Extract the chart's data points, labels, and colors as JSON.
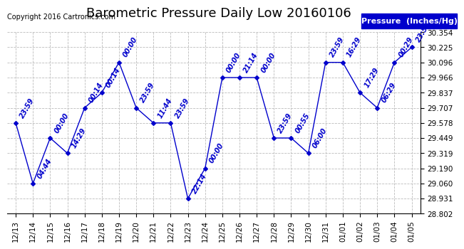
{
  "title": "Barometric Pressure Daily Low 20160106",
  "copyright": "Copyright 2016 Cartronics.com",
  "legend_label": "Pressure  (Inches/Hg)",
  "x_labels": [
    "12/13",
    "12/14",
    "12/15",
    "12/16",
    "12/17",
    "12/18",
    "12/19",
    "12/20",
    "12/21",
    "12/22",
    "12/23",
    "12/24",
    "12/25",
    "12/26",
    "12/27",
    "12/28",
    "12/29",
    "12/30",
    "12/31",
    "01/01",
    "01/02",
    "01/03",
    "01/04",
    "01/05"
  ],
  "y_values": [
    29.578,
    29.06,
    29.449,
    29.319,
    29.707,
    29.837,
    30.096,
    29.707,
    29.578,
    29.578,
    28.931,
    29.19,
    29.966,
    29.966,
    29.966,
    29.449,
    29.449,
    29.319,
    30.096,
    30.096,
    29.837,
    29.707,
    30.096,
    30.225
  ],
  "point_labels": [
    "23:59",
    "04:44",
    "00:00",
    "14:29",
    "00:14",
    "00:14",
    "00:00",
    "23:59",
    "11:44",
    "23:59",
    "22:14",
    "00:00",
    "00:00",
    "21:14",
    "00:00",
    "23:59",
    "00:55",
    "06:00",
    "23:59",
    "16:29",
    "17:29",
    "06:29",
    "00:29",
    "23:55"
  ],
  "line_color": "#0000cc",
  "point_color": "#0000cc",
  "label_color": "#0000cc",
  "background_color": "#ffffff",
  "grid_color": "#bbbbbb",
  "title_color": "#000000",
  "copyright_color": "#000000",
  "legend_bg": "#0000cc",
  "legend_text_color": "#ffffff",
  "ylim_min": 28.802,
  "ylim_max": 30.354,
  "yticks": [
    28.802,
    28.931,
    29.06,
    29.19,
    29.319,
    29.449,
    29.578,
    29.707,
    29.837,
    29.966,
    30.096,
    30.225,
    30.354
  ],
  "title_fontsize": 13,
  "tick_fontsize": 7.5,
  "label_fontsize": 7,
  "copyright_fontsize": 7,
  "legend_fontsize": 8
}
